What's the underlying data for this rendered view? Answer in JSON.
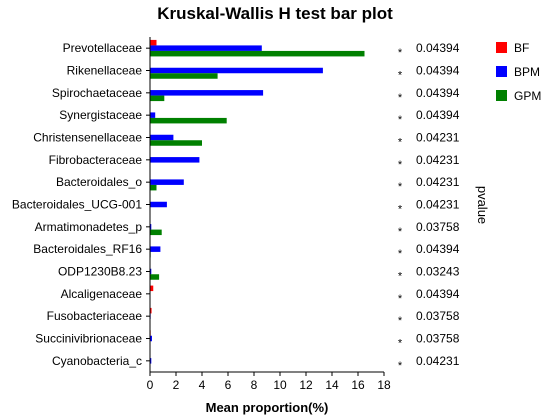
{
  "chart_data": {
    "type": "bar",
    "orientation": "horizontal",
    "title": "Kruskal-Wallis H test bar plot",
    "xlabel": "Mean proportion(%)",
    "ylabel": "",
    "pvalue_label": "pvalue",
    "xlim": [
      0,
      18
    ],
    "xticks": [
      "0",
      "2",
      "4",
      "6",
      "8",
      "10",
      "12",
      "14",
      "16",
      "18"
    ],
    "grid": false,
    "legend_position": "top-right",
    "categories": [
      "Prevotellaceae",
      "Rikenellaceae",
      "Spirochaetaceae",
      "Synergistaceae",
      "Christensenellaceae",
      "Fibrobacteraceae",
      "Bacteroidales_o",
      "Bacteroidales_UCG-001",
      "Armatimonadetes_p",
      "Bacteroidales_RF16",
      "ODP1230B8.23",
      "Alcaligenaceae",
      "Fusobacteriaceae",
      "Succinivibrionaceae",
      "Cyanobacteria_c"
    ],
    "series": [
      {
        "name": "BF",
        "color": "#ff0000",
        "values": [
          0.5,
          0.0,
          0.0,
          0.0,
          0.0,
          0.0,
          0.0,
          0.0,
          0.0,
          0.0,
          0.0,
          0.25,
          0.12,
          0.05,
          0.03
        ]
      },
      {
        "name": "BPM",
        "color": "#0000ff",
        "values": [
          8.6,
          13.3,
          8.7,
          0.4,
          1.8,
          3.8,
          2.6,
          1.3,
          0.1,
          0.8,
          0.1,
          0.0,
          0.05,
          0.15,
          0.1
        ]
      },
      {
        "name": "GPM",
        "color": "#008000",
        "values": [
          16.5,
          5.2,
          1.1,
          5.9,
          4.0,
          0.0,
          0.5,
          0.0,
          0.9,
          0.05,
          0.7,
          0.0,
          0.0,
          0.0,
          0.0
        ]
      }
    ],
    "significance": [
      "*",
      "*",
      "*",
      "*",
      "*",
      "*",
      "*",
      "*",
      "*",
      "*",
      "*",
      "*",
      "*",
      "*",
      "*"
    ],
    "pvalues": [
      "0.04394",
      "0.04394",
      "0.04394",
      "0.04394",
      "0.04231",
      "0.04231",
      "0.04231",
      "0.04231",
      "0.03758",
      "0.04394",
      "0.03243",
      "0.04394",
      "0.03758",
      "0.03758",
      "0.04231"
    ]
  }
}
